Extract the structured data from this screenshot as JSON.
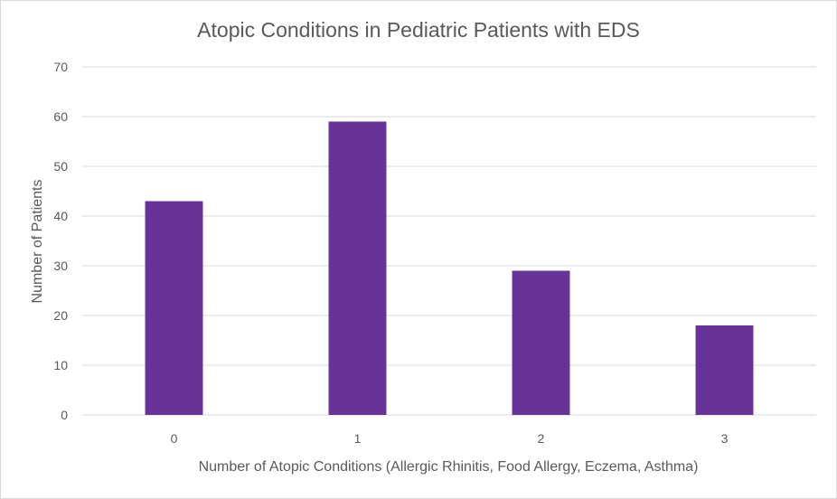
{
  "chart_data": {
    "type": "bar",
    "title": "Atopic Conditions in Pediatric Patients with EDS",
    "xlabel": "Number of Atopic Conditions (Allergic Rhinitis, Food Allergy, Eczema, Asthma)",
    "ylabel": "Number of Patients",
    "categories": [
      "0",
      "1",
      "2",
      "3"
    ],
    "values": [
      43,
      59,
      29,
      18
    ],
    "ylim": [
      0,
      70
    ],
    "yticks": [
      0,
      10,
      20,
      30,
      40,
      50,
      60,
      70
    ],
    "grid": true,
    "legend": "none",
    "colors": {
      "bar": "#673399",
      "grid": "#d9d9d9",
      "text": "#595959",
      "baseline": "#d9d9d9"
    }
  }
}
